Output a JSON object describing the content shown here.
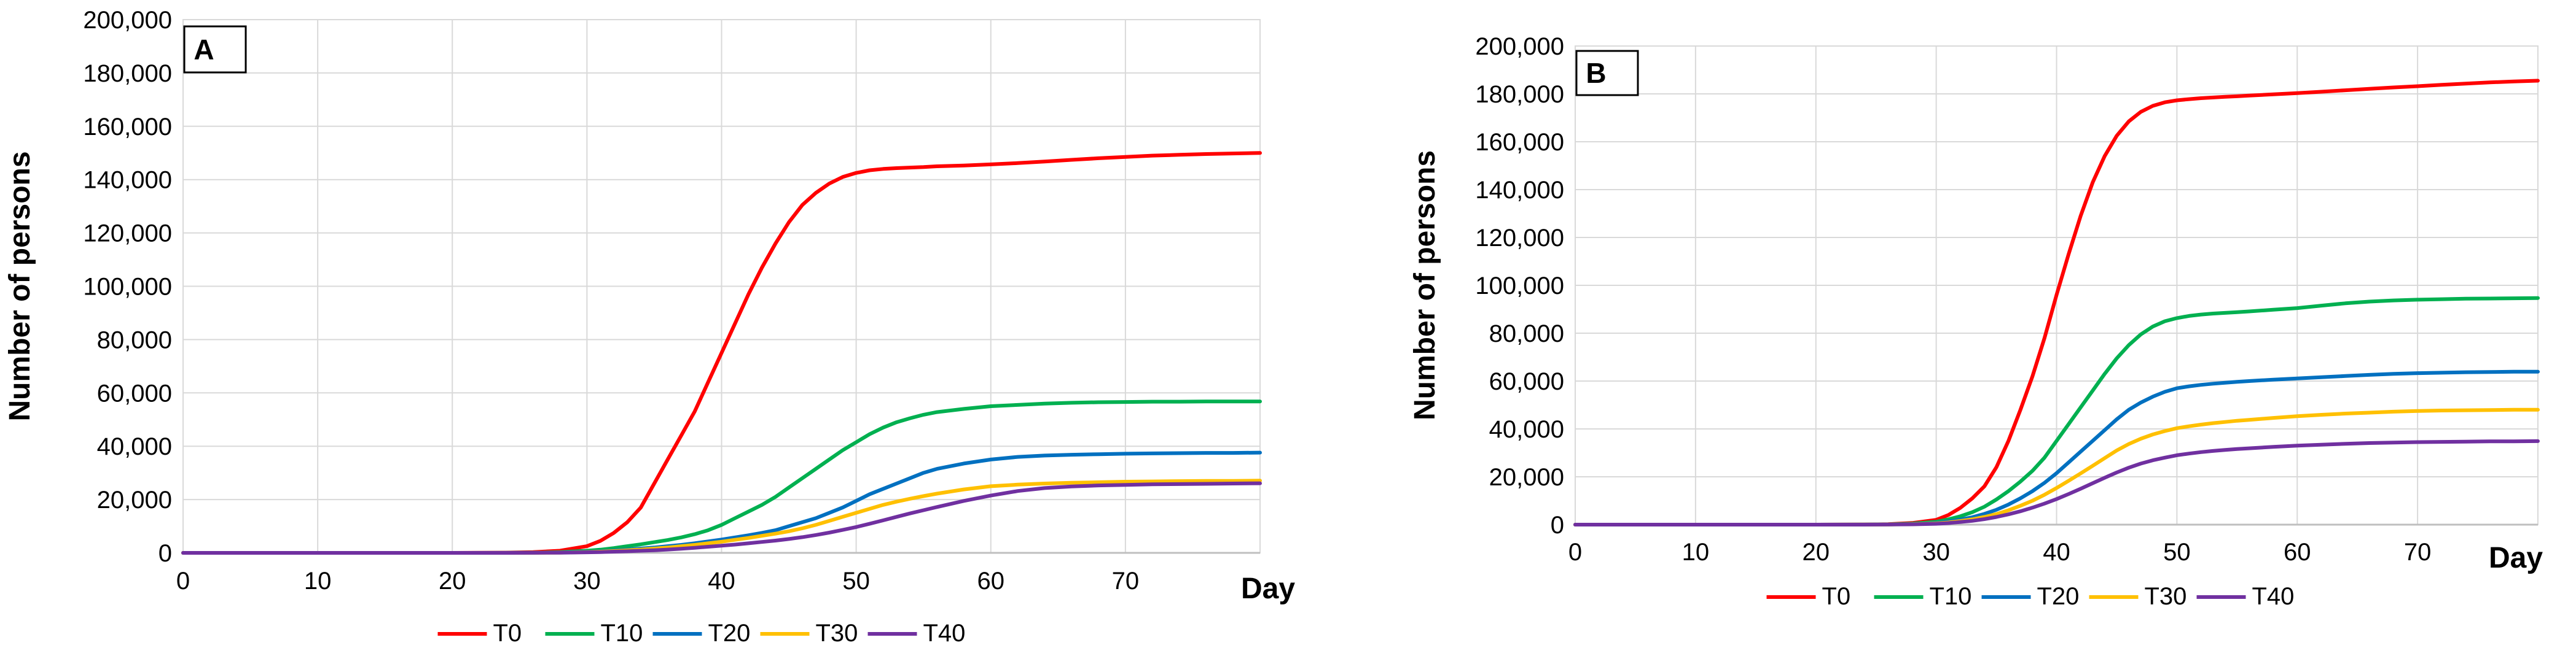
{
  "chart_data": [
    {
      "type": "line",
      "panel_label": "A",
      "xlabel": "Day",
      "ylabel": "Number of persons",
      "xlim": [
        0,
        80
      ],
      "ylim": [
        0,
        200000
      ],
      "x_ticks": [
        "0",
        "10",
        "20",
        "30",
        "40",
        "50",
        "60",
        "70"
      ],
      "y_ticks": [
        "0",
        "20,000",
        "40,000",
        "60,000",
        "80,000",
        "100,000",
        "120,000",
        "140,000",
        "160,000",
        "180,000",
        "200,000"
      ],
      "grid": true,
      "legend_position": "bottom",
      "x": [
        0,
        10,
        20,
        24,
        26,
        28,
        30,
        31,
        32,
        33,
        34,
        35,
        36,
        37,
        38,
        39,
        40,
        41,
        42,
        43,
        44,
        45,
        46,
        47,
        48,
        49,
        50,
        51,
        52,
        53,
        54,
        55,
        56,
        58,
        60,
        62,
        64,
        66,
        68,
        70,
        72,
        74,
        76,
        78,
        80
      ],
      "series": [
        {
          "name": "T0",
          "color": "#ff0000",
          "values": [
            0,
            0,
            0,
            100,
            300,
            800,
            2500,
            4500,
            7500,
            11500,
            17000,
            26000,
            35000,
            44000,
            53000,
            64000,
            75000,
            86000,
            97000,
            107000,
            116000,
            124000,
            130500,
            135000,
            138500,
            141000,
            142500,
            143500,
            144000,
            144300,
            144500,
            144700,
            145000,
            145300,
            145700,
            146200,
            146800,
            147400,
            148000,
            148500,
            149000,
            149300,
            149600,
            149800,
            150000
          ]
        },
        {
          "name": "T10",
          "color": "#00b050",
          "values": [
            0,
            0,
            0,
            20,
            80,
            300,
            800,
            1200,
            1800,
            2500,
            3200,
            4000,
            4800,
            5800,
            7000,
            8500,
            10500,
            13000,
            15500,
            18000,
            21000,
            24500,
            28000,
            31500,
            35000,
            38500,
            41500,
            44500,
            47000,
            49000,
            50500,
            51800,
            52800,
            54000,
            55000,
            55500,
            56000,
            56300,
            56500,
            56600,
            56700,
            56700,
            56800,
            56800,
            56800
          ]
        },
        {
          "name": "T20",
          "color": "#0070c0",
          "values": [
            0,
            0,
            0,
            10,
            40,
            150,
            400,
            600,
            900,
            1200,
            1600,
            2000,
            2500,
            3000,
            3600,
            4300,
            5000,
            5800,
            6600,
            7500,
            8500,
            10000,
            11500,
            13000,
            15000,
            17000,
            19500,
            22000,
            24000,
            26000,
            28000,
            30000,
            31500,
            33500,
            35000,
            36000,
            36500,
            36800,
            37000,
            37200,
            37300,
            37400,
            37500,
            37500,
            37600
          ]
        },
        {
          "name": "T30",
          "color": "#ffc000",
          "values": [
            0,
            0,
            0,
            10,
            30,
            100,
            300,
            450,
            700,
            950,
            1250,
            1600,
            2000,
            2500,
            3000,
            3600,
            4200,
            4900,
            5600,
            6400,
            7200,
            8100,
            9200,
            10500,
            12000,
            13500,
            15000,
            16500,
            18000,
            19200,
            20300,
            21300,
            22200,
            23800,
            25000,
            25600,
            26000,
            26300,
            26500,
            26700,
            26800,
            26900,
            27000,
            27000,
            27100
          ]
        },
        {
          "name": "T40",
          "color": "#7030a0",
          "values": [
            0,
            0,
            0,
            5,
            20,
            60,
            200,
            300,
            450,
            600,
            800,
            1000,
            1250,
            1550,
            1900,
            2300,
            2700,
            3100,
            3600,
            4100,
            4600,
            5200,
            5900,
            6700,
            7600,
            8600,
            9700,
            10900,
            12200,
            13500,
            14800,
            16000,
            17200,
            19500,
            21500,
            23200,
            24300,
            24900,
            25300,
            25500,
            25700,
            25800,
            25900,
            26000,
            26100
          ]
        }
      ]
    },
    {
      "type": "line",
      "panel_label": "B",
      "xlabel": "Day",
      "ylabel": "Number of persons",
      "xlim": [
        0,
        80
      ],
      "ylim": [
        0,
        200000
      ],
      "x_ticks": [
        "0",
        "10",
        "20",
        "30",
        "40",
        "50",
        "60",
        "70"
      ],
      "y_ticks": [
        "0",
        "20,000",
        "40,000",
        "60,000",
        "80,000",
        "100,000",
        "120,000",
        "140,000",
        "160,000",
        "180,000",
        "200,000"
      ],
      "grid": true,
      "legend_position": "bottom",
      "x": [
        0,
        10,
        20,
        24,
        26,
        28,
        30,
        31,
        32,
        33,
        34,
        35,
        36,
        37,
        38,
        39,
        40,
        41,
        42,
        43,
        44,
        45,
        46,
        47,
        48,
        49,
        50,
        51,
        52,
        53,
        54,
        55,
        56,
        58,
        60,
        62,
        64,
        66,
        68,
        70,
        72,
        74,
        76,
        78,
        80
      ],
      "series": [
        {
          "name": "T0",
          "color": "#ff0000",
          "values": [
            0,
            0,
            0,
            50,
            200,
            700,
            2000,
            4000,
            7000,
            11000,
            16000,
            24000,
            35000,
            48000,
            62000,
            78000,
            96000,
            113000,
            129000,
            143000,
            154000,
            162500,
            168500,
            172500,
            175000,
            176500,
            177300,
            177800,
            178200,
            178500,
            178800,
            179000,
            179300,
            179800,
            180300,
            180900,
            181500,
            182100,
            182700,
            183200,
            183800,
            184300,
            184800,
            185200,
            185500
          ]
        },
        {
          "name": "T10",
          "color": "#00b050",
          "values": [
            0,
            0,
            0,
            30,
            120,
            400,
            1200,
            2200,
            3500,
            5200,
            7500,
            10500,
            14000,
            18000,
            22500,
            28000,
            35000,
            42000,
            49000,
            56000,
            63000,
            69500,
            75000,
            79500,
            82800,
            85000,
            86300,
            87200,
            87800,
            88200,
            88500,
            88800,
            89100,
            89800,
            90500,
            91500,
            92500,
            93200,
            93700,
            94000,
            94200,
            94400,
            94500,
            94600,
            94700
          ]
        },
        {
          "name": "T20",
          "color": "#0070c0",
          "values": [
            0,
            0,
            0,
            20,
            80,
            250,
            700,
            1300,
            2100,
            3100,
            4500,
            6200,
            8400,
            11000,
            14000,
            17500,
            21500,
            26000,
            30500,
            35000,
            39500,
            44000,
            48000,
            51000,
            53500,
            55500,
            57000,
            57800,
            58400,
            58900,
            59300,
            59700,
            60000,
            60600,
            61100,
            61600,
            62100,
            62600,
            63000,
            63300,
            63500,
            63700,
            63800,
            63900,
            63900
          ]
        },
        {
          "name": "T30",
          "color": "#ffc000",
          "values": [
            0,
            0,
            0,
            15,
            60,
            200,
            500,
            900,
            1500,
            2200,
            3200,
            4400,
            6000,
            7900,
            10000,
            12500,
            15300,
            18300,
            21400,
            24600,
            27800,
            31000,
            33700,
            35900,
            37700,
            39100,
            40300,
            41100,
            41800,
            42400,
            42900,
            43400,
            43800,
            44600,
            45300,
            45900,
            46400,
            46800,
            47200,
            47500,
            47700,
            47800,
            47900,
            48000,
            48000
          ]
        },
        {
          "name": "T40",
          "color": "#7030a0",
          "values": [
            0,
            0,
            0,
            10,
            40,
            130,
            350,
            650,
            1100,
            1600,
            2300,
            3200,
            4300,
            5600,
            7100,
            8800,
            10700,
            12800,
            15000,
            17300,
            19600,
            21800,
            23800,
            25500,
            26900,
            28000,
            29000,
            29700,
            30300,
            30800,
            31200,
            31600,
            31900,
            32500,
            33000,
            33400,
            33800,
            34100,
            34300,
            34500,
            34600,
            34700,
            34800,
            34800,
            34900
          ]
        }
      ]
    }
  ]
}
